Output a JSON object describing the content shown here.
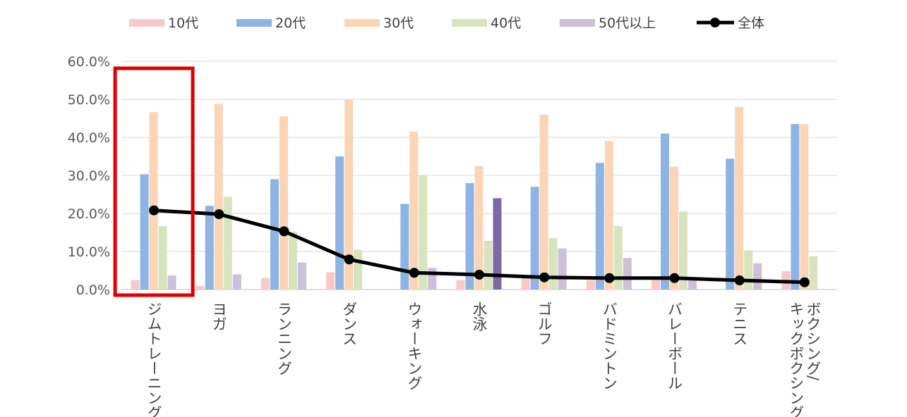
{
  "chart_data": {
    "type": "bar",
    "title": "",
    "xlabel": "",
    "ylabel": "",
    "ylim": [
      0,
      60
    ],
    "y_ticks": [
      "0.0%",
      "10.0%",
      "20.0%",
      "30.0%",
      "40.0%",
      "50.0%",
      "60.0%"
    ],
    "grid": true,
    "legend_position": "top",
    "categories": [
      "ジムトレーニング",
      "ヨガ",
      "ランニング",
      "ダンス",
      "ウォーキング",
      "水泳",
      "ゴルフ",
      "バドミントン",
      "バレーボール",
      "テニス",
      "ボクシング/キックボクシング"
    ],
    "category_lines": [
      [
        "ジムトレーニング"
      ],
      [
        "ヨガ"
      ],
      [
        "ランニング"
      ],
      [
        "ダンス"
      ],
      [
        "ウォーキング"
      ],
      [
        "水泳"
      ],
      [
        "ゴルフ"
      ],
      [
        "バドミントン"
      ],
      [
        "バレーボール"
      ],
      [
        "テニス"
      ],
      [
        "ボクシング/",
        "キックボクシング"
      ]
    ],
    "series": [
      {
        "name": "10代",
        "kind": "bar",
        "color": "#F9C9C9",
        "values": [
          2.5,
          1.0,
          3.0,
          4.5,
          0,
          2.5,
          3.0,
          2.5,
          3.0,
          0,
          4.8
        ]
      },
      {
        "name": "20代",
        "kind": "bar",
        "color": "#8EB4E3",
        "values": [
          30.3,
          22.0,
          29.0,
          35.0,
          22.5,
          28.0,
          27.0,
          33.3,
          41.0,
          34.4,
          43.5
        ]
      },
      {
        "name": "30代",
        "kind": "bar",
        "color": "#FBD5B5",
        "values": [
          46.6,
          48.8,
          45.5,
          50.0,
          41.5,
          32.5,
          46.0,
          39.0,
          32.3,
          48.0,
          43.5
        ]
      },
      {
        "name": "40代",
        "kind": "bar",
        "color": "#D7E4BD",
        "values": [
          16.7,
          24.4,
          15.2,
          10.5,
          30.0,
          12.8,
          13.5,
          16.7,
          20.5,
          10.3,
          8.7
        ]
      },
      {
        "name": "50代以上",
        "kind": "bar",
        "color": "#CCC0DA",
        "values": [
          3.7,
          4.0,
          7.1,
          0,
          5.7,
          24.0,
          10.8,
          8.3,
          3.0,
          6.9,
          0
        ]
      },
      {
        "name": "全体",
        "kind": "line",
        "color": "#000000",
        "values": [
          20.8,
          19.8,
          15.3,
          7.9,
          4.4,
          3.9,
          3.2,
          3.0,
          3.0,
          2.4,
          1.9
        ]
      }
    ],
    "highlight_color": "#7B68A6",
    "highlighted_bars": [
      {
        "series": "50代以上",
        "category": "水泳"
      }
    ],
    "highlight_box_color": "#E00000",
    "highlighted_category": "ジムトレーニング"
  }
}
